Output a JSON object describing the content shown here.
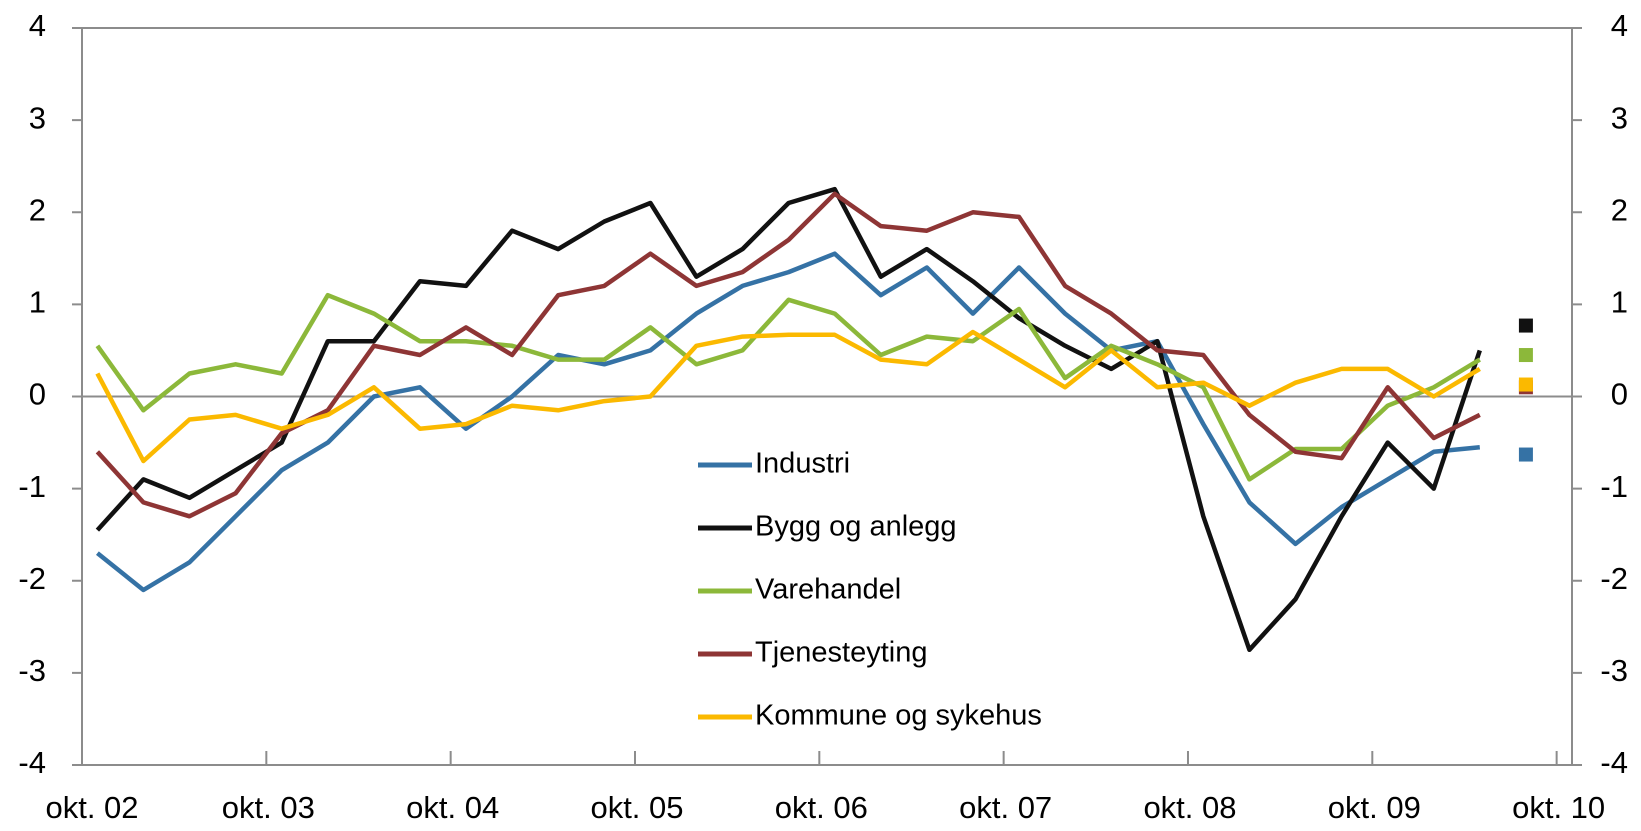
{
  "chart_data": {
    "type": "line",
    "x": [
      1,
      4,
      7,
      10,
      13,
      16,
      19,
      22,
      25,
      28,
      31,
      34,
      37,
      40,
      43,
      46,
      49,
      52,
      55,
      58,
      61,
      64,
      67,
      70,
      73,
      76,
      79,
      82,
      85,
      88,
      91
    ],
    "xlim": [
      0,
      97
    ],
    "xticks": [
      {
        "value": 0,
        "label": "okt. 02"
      },
      {
        "value": 12,
        "label": "okt. 03"
      },
      {
        "value": 24,
        "label": "okt. 04"
      },
      {
        "value": 36,
        "label": "okt. 05"
      },
      {
        "value": 48,
        "label": "okt. 06"
      },
      {
        "value": 60,
        "label": "okt. 07"
      },
      {
        "value": 72,
        "label": "okt. 08"
      },
      {
        "value": 84,
        "label": "okt. 09"
      },
      {
        "value": 96,
        "label": "okt. 10"
      }
    ],
    "ylim": [
      -4,
      4
    ],
    "yticks": [
      -4,
      -3,
      -2,
      -1,
      0,
      1,
      2,
      3,
      4
    ],
    "y2lim": [
      -4,
      4
    ],
    "y2ticks": [
      -4,
      -3,
      -2,
      -1,
      0,
      1,
      2,
      3,
      4
    ],
    "point_x": 94,
    "series": [
      {
        "name": "Industri",
        "color": "#3572a5",
        "point": -0.63,
        "values": [
          -1.7,
          -2.1,
          -1.8,
          -1.3,
          -0.8,
          -0.5,
          0.0,
          0.1,
          -0.35,
          0.0,
          0.45,
          0.35,
          0.5,
          0.9,
          1.2,
          1.35,
          1.55,
          1.1,
          1.4,
          0.9,
          1.4,
          0.9,
          0.5,
          0.6,
          -0.3,
          -1.15,
          -1.6,
          -1.2,
          -0.9,
          -0.6,
          -0.55
        ]
      },
      {
        "name": "Bygg og anlegg",
        "color": "#111111",
        "point": 0.77,
        "values": [
          -1.45,
          -0.9,
          -1.1,
          -0.8,
          -0.5,
          0.6,
          0.6,
          1.25,
          1.2,
          1.8,
          1.6,
          1.9,
          2.1,
          1.3,
          1.6,
          2.1,
          2.25,
          1.3,
          1.6,
          1.25,
          0.85,
          0.55,
          0.3,
          0.6,
          -1.3,
          -2.75,
          -2.2,
          -1.3,
          -0.5,
          -1.0,
          0.5
        ]
      },
      {
        "name": "Varehandel",
        "color": "#8cb83a",
        "point": 0.45,
        "values": [
          0.55,
          -0.15,
          0.25,
          0.35,
          0.25,
          1.1,
          0.9,
          0.6,
          0.6,
          0.55,
          0.4,
          0.4,
          0.75,
          0.35,
          0.5,
          1.05,
          0.9,
          0.45,
          0.65,
          0.6,
          0.95,
          0.2,
          0.55,
          0.35,
          0.1,
          -0.9,
          -0.57,
          -0.57,
          -0.1,
          0.1,
          0.4
        ]
      },
      {
        "name": "Tjenesteyting",
        "color": "#8e3535",
        "point": 0.1,
        "values": [
          -0.6,
          -1.15,
          -1.3,
          -1.05,
          -0.4,
          -0.15,
          0.55,
          0.45,
          0.75,
          0.45,
          1.1,
          1.2,
          1.55,
          1.2,
          1.35,
          1.7,
          2.2,
          1.85,
          1.8,
          2.0,
          1.95,
          1.2,
          0.9,
          0.5,
          0.45,
          -0.2,
          -0.6,
          -0.67,
          0.1,
          -0.45,
          -0.2
        ]
      },
      {
        "name": "Kommune og sykehus",
        "color": "#fbb900",
        "point": 0.13,
        "values": [
          0.25,
          -0.7,
          -0.25,
          -0.2,
          -0.35,
          -0.2,
          0.1,
          -0.35,
          -0.3,
          -0.1,
          -0.15,
          -0.05,
          0.0,
          0.55,
          0.65,
          0.67,
          0.67,
          0.4,
          0.35,
          0.7,
          0.4,
          0.1,
          0.5,
          0.1,
          0.15,
          -0.1,
          0.15,
          0.3,
          0.3,
          0.0,
          0.3
        ]
      }
    ]
  }
}
